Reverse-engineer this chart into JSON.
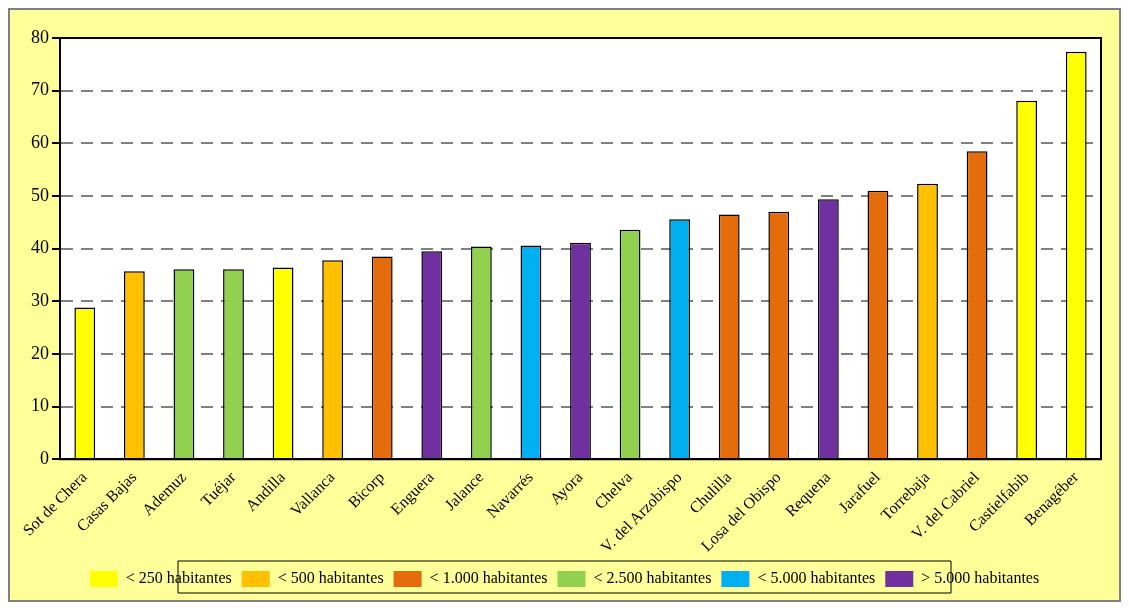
{
  "chart_data": {
    "type": "bar",
    "categories": [
      "Sot de Chera",
      "Casas Bajas",
      "Ademuz",
      "Tuéjar",
      "Andilla",
      "Vallanca",
      "Bicorp",
      "Enguera",
      "Jalance",
      "Navarrés",
      "Ayora",
      "Chelva",
      "V. del Arzobispo",
      "Chulilla",
      "Losa del Obispo",
      "Requena",
      "Jarafuel",
      "Torrebaja",
      "V. del Cabriel",
      "Castielfabib",
      "Benagéber"
    ],
    "series": [
      {
        "name": "< 250 habitantes",
        "color": "#ffff00",
        "values": [
          28.8,
          null,
          null,
          null,
          36.4,
          null,
          null,
          null,
          null,
          null,
          null,
          null,
          null,
          null,
          null,
          null,
          null,
          null,
          null,
          68.1,
          77.4
        ]
      },
      {
        "name": "< 500 habitantes",
        "color": "#ffc000",
        "values": [
          null,
          35.7,
          null,
          null,
          null,
          37.8,
          null,
          null,
          null,
          null,
          null,
          null,
          null,
          null,
          null,
          null,
          null,
          52.3,
          null,
          null,
          null
        ]
      },
      {
        "name": "< 1.000 habitantes",
        "color": "#e46c0a",
        "values": [
          null,
          null,
          null,
          null,
          null,
          null,
          38.5,
          null,
          null,
          null,
          null,
          null,
          null,
          46.5,
          47.0,
          null,
          51.0,
          null,
          58.5,
          null,
          null
        ]
      },
      {
        "name": "< 2.500 habitantes",
        "color": "#92d050",
        "values": [
          null,
          null,
          36.1,
          36.1,
          null,
          null,
          null,
          null,
          40.4,
          null,
          null,
          43.6,
          null,
          null,
          null,
          null,
          null,
          null,
          null,
          null,
          null
        ]
      },
      {
        "name": "< 5.000 habitantes",
        "color": "#00b0f0",
        "values": [
          null,
          null,
          null,
          null,
          null,
          null,
          null,
          null,
          null,
          40.6,
          null,
          null,
          45.6,
          null,
          null,
          null,
          null,
          null,
          null,
          null,
          null
        ]
      },
      {
        "name": "> 5.000 habitantes",
        "color": "#7030a0",
        "values": [
          null,
          null,
          null,
          null,
          null,
          null,
          null,
          39.5,
          null,
          null,
          41.1,
          null,
          null,
          null,
          null,
          49.4,
          null,
          null,
          null,
          null,
          null
        ]
      }
    ],
    "ylim": [
      0,
      80
    ],
    "yticks": [
      0,
      10,
      20,
      30,
      40,
      50,
      60,
      70,
      80
    ],
    "grid": "y",
    "line_style": "dashed",
    "legend": "bottom"
  }
}
